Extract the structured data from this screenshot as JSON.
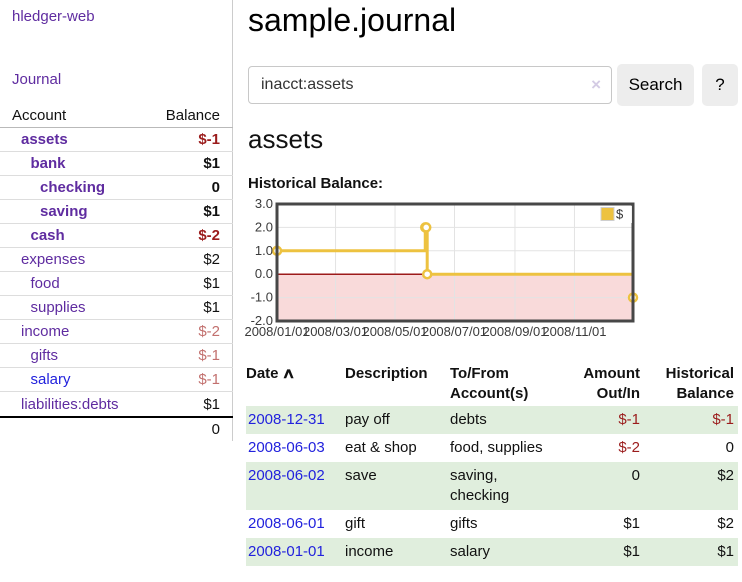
{
  "colors": {
    "link_purple": "#5f2ca0",
    "link_blue": "#2222dd",
    "negative_strong": "#9b1c1c",
    "negative_soft": "#c2706e",
    "row_highlight_green": "#e0eedd",
    "button_gray": "#ededed",
    "divider_gray": "#cccccc",
    "chart_line": "#edc240",
    "chart_negative_fill": "#f9dada",
    "chart_zero_line": "#9c1a1a"
  },
  "app": {
    "brand": "hledger-web",
    "nav_journal": "Journal"
  },
  "sidebar": {
    "header": {
      "account": "Account",
      "balance": "Balance"
    },
    "accounts": [
      {
        "name": "assets",
        "balance": "$-1",
        "indent": 0,
        "bold": true,
        "name_tone": "purple",
        "balance_tone": "neg-strong"
      },
      {
        "name": "bank",
        "balance": "$1",
        "indent": 1,
        "bold": true,
        "name_tone": "purple",
        "balance_tone": "plain"
      },
      {
        "name": "checking",
        "balance": "0",
        "indent": 2,
        "bold": true,
        "name_tone": "purple",
        "balance_tone": "plain"
      },
      {
        "name": "saving",
        "balance": "$1",
        "indent": 2,
        "bold": true,
        "name_tone": "purple",
        "balance_tone": "plain"
      },
      {
        "name": "cash",
        "balance": "$-2",
        "indent": 1,
        "bold": true,
        "name_tone": "purple",
        "balance_tone": "neg-strong"
      },
      {
        "name": "expenses",
        "balance": "$2",
        "indent": 0,
        "bold": false,
        "name_tone": "purple",
        "balance_tone": "plain"
      },
      {
        "name": "food",
        "balance": "$1",
        "indent": 1,
        "bold": false,
        "name_tone": "purple",
        "balance_tone": "plain"
      },
      {
        "name": "supplies",
        "balance": "$1",
        "indent": 1,
        "bold": false,
        "name_tone": "purple",
        "balance_tone": "plain"
      },
      {
        "name": "income",
        "balance": "$-2",
        "indent": 0,
        "bold": false,
        "name_tone": "purple",
        "balance_tone": "neg-soft"
      },
      {
        "name": "gifts",
        "balance": "$-1",
        "indent": 1,
        "bold": false,
        "name_tone": "purple",
        "balance_tone": "neg-soft"
      },
      {
        "name": "salary",
        "balance": "$-1",
        "indent": 1,
        "bold": false,
        "name_tone": "blue",
        "balance_tone": "neg-soft"
      },
      {
        "name": "liabilities:debts",
        "balance": "$1",
        "indent": 0,
        "bold": false,
        "name_tone": "purple",
        "balance_tone": "plain"
      }
    ],
    "total": "0"
  },
  "main": {
    "title": "sample.journal",
    "search": {
      "value": "inacct:assets",
      "clear_icon": "×",
      "button_label": "Search",
      "help_label": "?"
    },
    "account_heading": "assets",
    "chart_label": "Historical Balance:",
    "chart_data": {
      "type": "line",
      "step": true,
      "legend": "$",
      "x_start": "2008-01-01",
      "x_end": "2008-12-31",
      "y_min": -2,
      "y_max": 3,
      "y_ticks": [
        {
          "v": 3,
          "label": "3.0"
        },
        {
          "v": 2,
          "label": "2.0"
        },
        {
          "v": 1,
          "label": "1.0"
        },
        {
          "v": 0,
          "label": "0.0"
        },
        {
          "v": -1,
          "label": "-1.0"
        },
        {
          "v": -2,
          "label": "-2.0"
        }
      ],
      "x_ticks": [
        {
          "date": "2008-01-01",
          "label": "2008/01/01"
        },
        {
          "date": "2008-03-01",
          "label": "2008/03/01"
        },
        {
          "date": "2008-05-01",
          "label": "2008/05/01"
        },
        {
          "date": "2008-07-01",
          "label": "2008/07/01"
        },
        {
          "date": "2008-09-01",
          "label": "2008/09/01"
        },
        {
          "date": "2008-11-01",
          "label": "2008/11/01"
        }
      ],
      "points": [
        {
          "date": "2008-01-01",
          "value": 1
        },
        {
          "date": "2008-06-01",
          "value": 2
        },
        {
          "date": "2008-06-02",
          "value": 2
        },
        {
          "date": "2008-06-03",
          "value": 0
        },
        {
          "date": "2008-12-31",
          "value": -1
        }
      ]
    },
    "register": {
      "sort_icon": "∧",
      "headers": [
        "Date",
        "Description",
        "To/From Account(s)",
        "Amount Out/In",
        "Historical Balance"
      ],
      "rows": [
        {
          "date": "2008-12-31",
          "description": "pay off",
          "tofrom": "debts",
          "amount": "$-1",
          "amount_tone": "neg-strong",
          "balance": "$-1",
          "balance_tone": "neg-strong"
        },
        {
          "date": "2008-06-03",
          "description": "eat & shop",
          "tofrom": "food, supplies",
          "amount": "$-2",
          "amount_tone": "neg-strong",
          "balance": "0",
          "balance_tone": "plain"
        },
        {
          "date": "2008-06-02",
          "description": "save",
          "tofrom": "saving,\nchecking",
          "amount": "0",
          "amount_tone": "plain",
          "balance": "$2",
          "balance_tone": "plain"
        },
        {
          "date": "2008-06-01",
          "description": "gift",
          "tofrom": "gifts",
          "amount": "$1",
          "amount_tone": "plain",
          "balance": "$2",
          "balance_tone": "plain"
        },
        {
          "date": "2008-01-01",
          "description": "income",
          "tofrom": "salary",
          "amount": "$1",
          "amount_tone": "plain",
          "balance": "$1",
          "balance_tone": "plain"
        }
      ]
    }
  }
}
